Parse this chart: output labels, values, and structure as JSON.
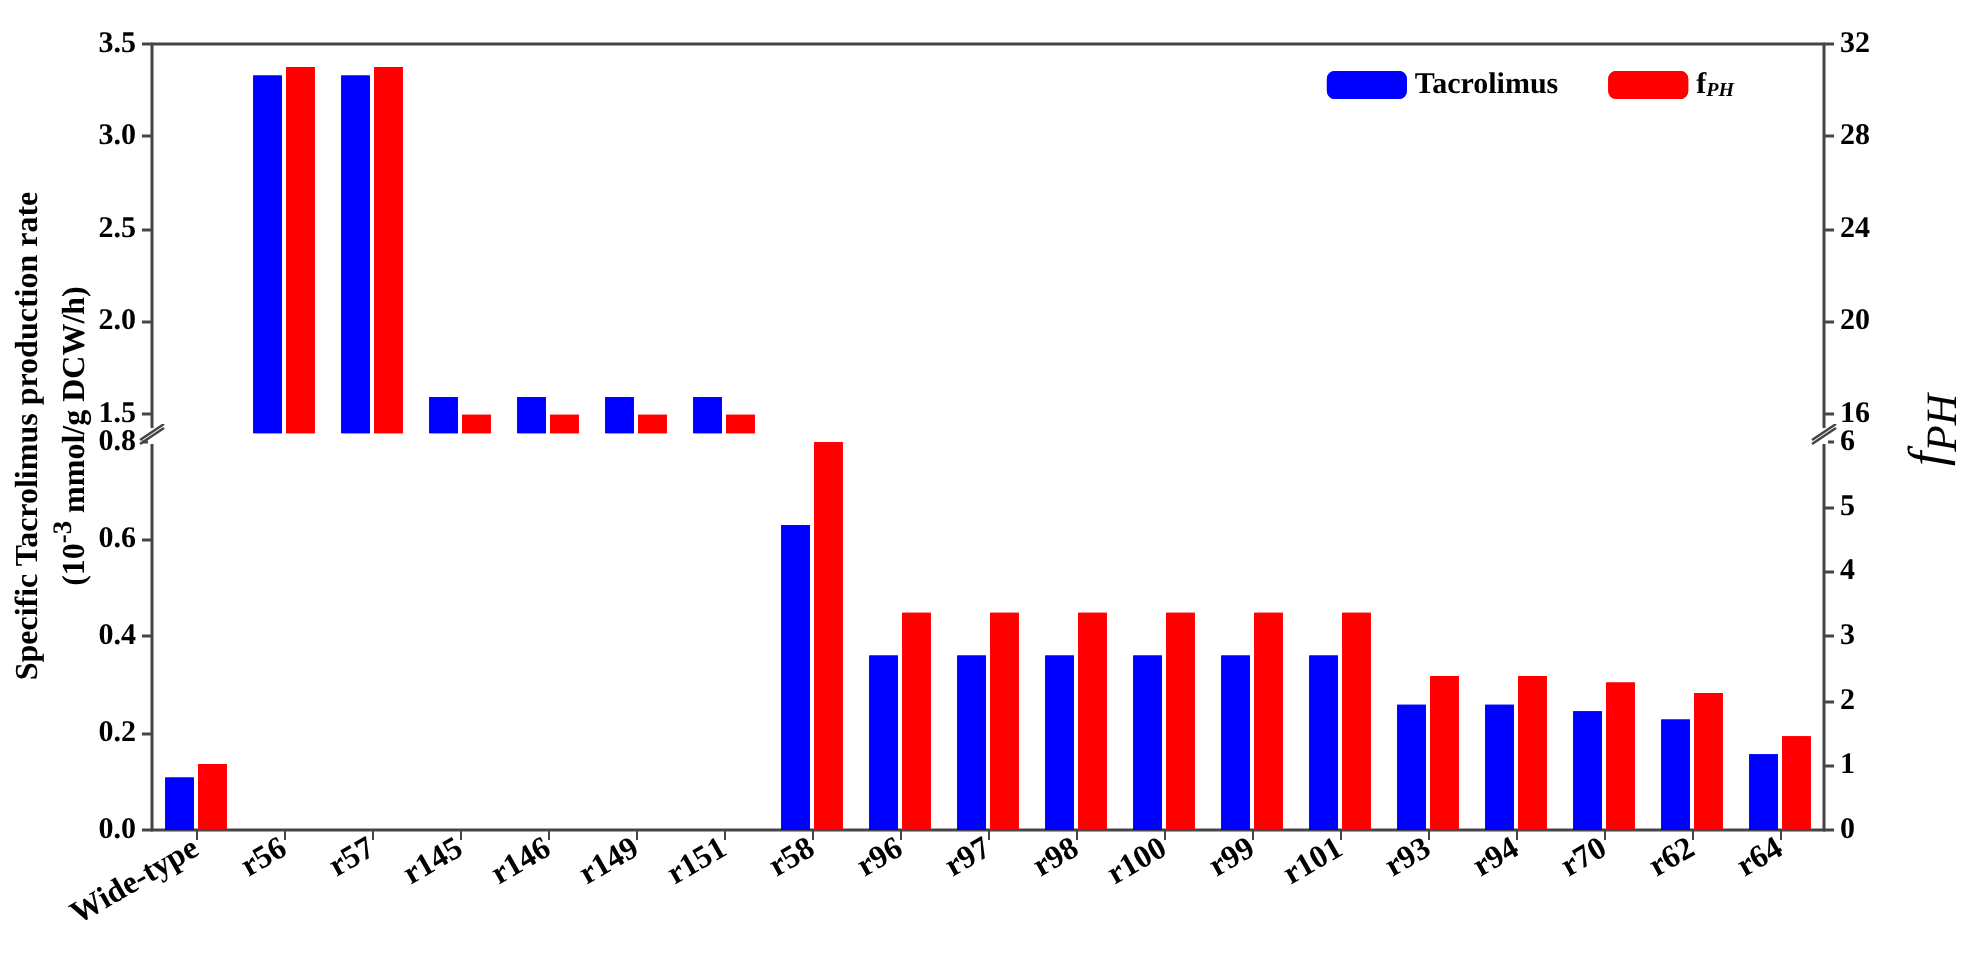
{
  "chart_data": [
    {
      "type": "bar",
      "categories": [
        null,
        null,
        null,
        null,
        null,
        null,
        null,
        null,
        null,
        null,
        null,
        null,
        null,
        null,
        null,
        null,
        null,
        null,
        null
      ],
      "series": [
        {
          "name": "Tacrolimus",
          "color": "#0000ff",
          "values": [
            null,
            3.33,
            3.33,
            1.59,
            1.59,
            1.59,
            1.59,
            null,
            null,
            null,
            null,
            null,
            null,
            null,
            null,
            null,
            null,
            null,
            null
          ]
        },
        {
          "name": "f$_{PH}$",
          "color": "#ff0000",
          "axis": "y2",
          "values": [
            null,
            31.0,
            31.0,
            15.95,
            15.95,
            15.95,
            15.95,
            null,
            null,
            null,
            null,
            null,
            null,
            null,
            null,
            null,
            null,
            null,
            null
          ]
        }
      ],
      "ylim": [
        1.4,
        3.5
      ],
      "yticks": [
        1.5,
        {
          "value": 2,
          "label": "2.0"
        },
        2.5,
        {
          "value": 3,
          "label": "3.0"
        },
        3.5
      ],
      "y2lim": [
        15.2,
        32
      ],
      "y2ticks": [
        16,
        20,
        24,
        28,
        32
      ],
      "tick_labels": "y",
      "legend": "top right"
    },
    {
      "type": "bar",
      "categories": [
        "Wide-type",
        "r56",
        "r57",
        "r145",
        "r146",
        "r149",
        "r151",
        "r58",
        "r96",
        "r97",
        "r98",
        "r100",
        "r99",
        "r101",
        "r93",
        "r94",
        "r70",
        "r62",
        "r64"
      ],
      "series": [
        {
          "color": "#0000ff",
          "values": [
            0.108,
            null,
            null,
            null,
            null,
            null,
            null,
            0.629,
            0.36,
            0.36,
            0.36,
            0.36,
            0.36,
            0.36,
            0.258,
            0.258,
            0.245,
            0.228,
            0.156
          ]
        },
        {
          "color": "#ff0000",
          "axis": "y2",
          "values": [
            1.02,
            null,
            null,
            null,
            null,
            null,
            null,
            6.0,
            3.36,
            3.36,
            3.36,
            3.36,
            3.36,
            3.36,
            2.38,
            2.38,
            2.28,
            2.12,
            1.45
          ]
        }
      ],
      "ylim": [
        0,
        0.8
      ],
      "yticks": [
        {
          "value": 0,
          "label": "0.0"
        },
        0.2,
        0.4,
        0.6,
        0.8
      ],
      "y2lim": [
        0,
        6
      ],
      "y2ticks": [
        0,
        1,
        2,
        3,
        4,
        5,
        6
      ],
      "ylabel": "Specific Tacrolimus production rate\n(10$^{-3}$ mmol/g DCW/h)",
      "y2label": "f$_{PH}$"
    }
  ]
}
